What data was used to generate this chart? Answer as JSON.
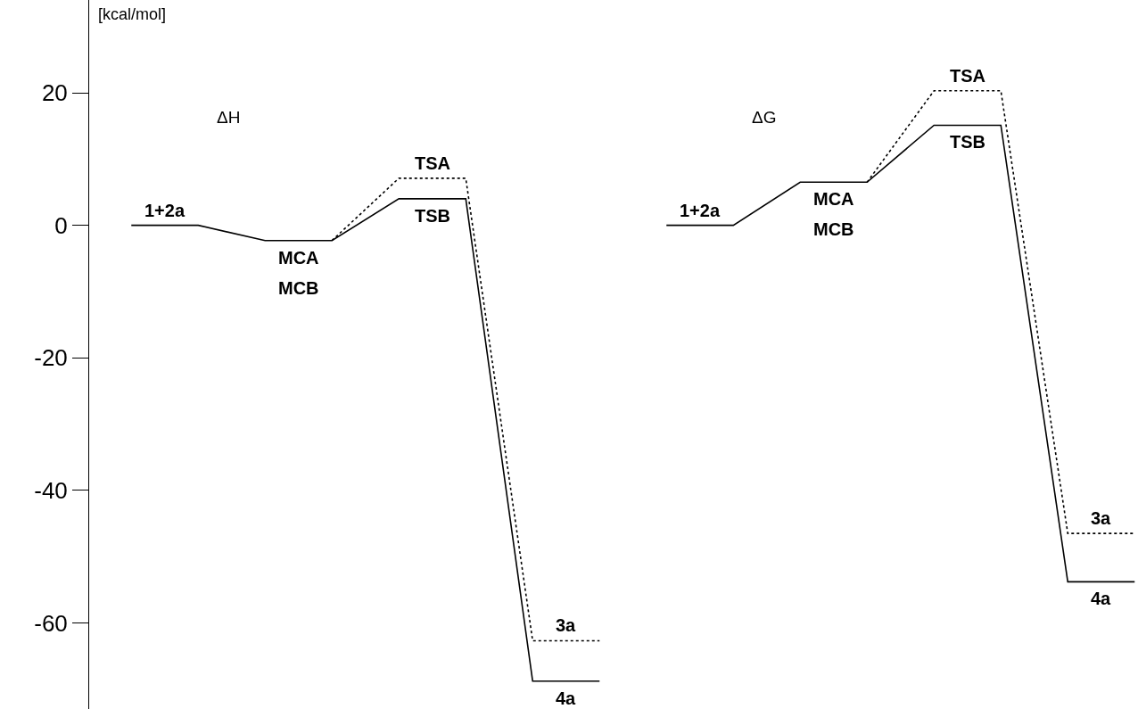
{
  "chart_data": {
    "type": "line",
    "ylabel": "[kcal/mol]",
    "categories": [
      null,
      null,
      null,
      null,
      null,
      null,
      null,
      null,
      null,
      null,
      null,
      null,
      null,
      null,
      null,
      null
    ],
    "ylim": [
      -73,
      34
    ],
    "yticks": [
      20,
      0,
      -20,
      -40,
      -60
    ],
    "tick_labels": "y",
    "grid": false,
    "marker": "none",
    "series": [
      {
        "color": "#000000",
        "line_style": "solid",
        "values": [
          0,
          0,
          -2.3,
          -2.3,
          4,
          4,
          -68.8,
          -68.8,
          null,
          null,
          null,
          null,
          null,
          null,
          null,
          null
        ]
      },
      {
        "color": "#000000",
        "line_style": "dotted",
        "values": [
          null,
          null,
          null,
          -2.3,
          7.1,
          7.1,
          -62.7,
          -62.7,
          null,
          null,
          null,
          null,
          null,
          null,
          null,
          null
        ]
      },
      {
        "color": "#000000",
        "line_style": "solid",
        "values": [
          null,
          null,
          null,
          null,
          null,
          null,
          null,
          null,
          0,
          0,
          6.5,
          6.5,
          15.1,
          15.1,
          -53.8,
          -53.8
        ]
      },
      {
        "color": "#000000",
        "line_style": "dotted",
        "values": [
          null,
          null,
          null,
          null,
          null,
          null,
          null,
          null,
          null,
          null,
          null,
          6.5,
          20.3,
          20.3,
          -46.5,
          -46.5
        ]
      }
    ],
    "annotations": [
      "ΔH",
      "ΔG",
      {
        "text": "1+2a",
        "y": 0
      },
      {
        "text": "MCA",
        "y": -2.3
      },
      {
        "text": "MCB",
        "y": -2.3
      },
      {
        "text": "TSA",
        "y": 7.1
      },
      {
        "text": "TSB",
        "y": 4
      },
      {
        "text": "3a",
        "y": -62.7
      },
      {
        "text": "4a",
        "y": -68.8
      },
      {
        "text": "1+2a",
        "y": 0
      },
      {
        "text": "MCA",
        "y": 6.5
      },
      {
        "text": "MCB",
        "y": 6.5
      },
      {
        "text": "TSA",
        "y": 20.3
      },
      {
        "text": "TSB",
        "y": 15.1
      },
      {
        "text": "3a",
        "y": -46.5
      },
      {
        "text": "4a",
        "y": -53.8
      }
    ]
  }
}
